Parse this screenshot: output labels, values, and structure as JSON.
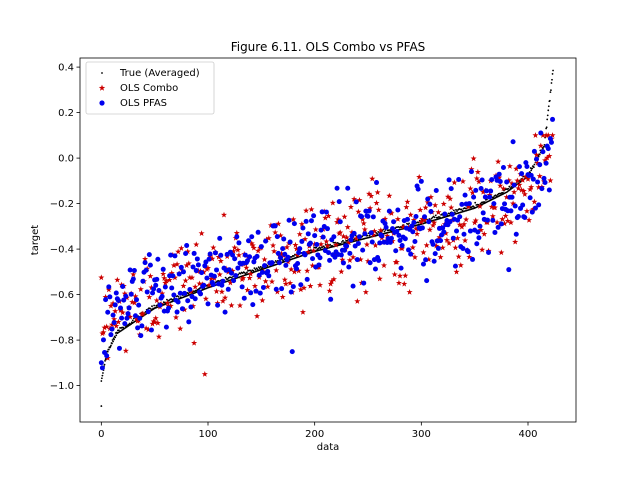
{
  "chart_data": {
    "type": "scatter",
    "title": "Figure 6.11. OLS Combo vs PFAS",
    "xlabel": "data",
    "ylabel": "target",
    "xlim": [
      -20,
      445
    ],
    "ylim": [
      -1.16,
      0.44
    ],
    "xticks": [
      0,
      100,
      200,
      300,
      400
    ],
    "yticks": [
      -1.0,
      -0.8,
      -0.6,
      -0.4,
      -0.2,
      0.0,
      0.2,
      0.4
    ],
    "xtick_labels": [
      "0",
      "100",
      "200",
      "300",
      "400"
    ],
    "ytick_labels": [
      "−1.0",
      "−0.8",
      "−0.6",
      "−0.4",
      "−0.2",
      "0.0",
      "0.2",
      "0.4"
    ],
    "legend_position": "upper-left",
    "n_points": 424,
    "series": [
      {
        "name": "True (Averaged)",
        "marker": "dot",
        "color": "#000000"
      },
      {
        "name": "OLS Combo",
        "marker": "star",
        "color": "#cc0000"
      },
      {
        "name": "OLS PFAS",
        "marker": "circle",
        "color": "#0000ee"
      }
    ],
    "true_curve_control_points": [
      [
        0,
        -0.98
      ],
      [
        5,
        -0.86
      ],
      [
        15,
        -0.77
      ],
      [
        50,
        -0.66
      ],
      [
        100,
        -0.57
      ],
      [
        150,
        -0.49
      ],
      [
        200,
        -0.41
      ],
      [
        250,
        -0.35
      ],
      [
        300,
        -0.29
      ],
      [
        350,
        -0.22
      ],
      [
        380,
        -0.15
      ],
      [
        400,
        -0.08
      ],
      [
        415,
        0.05
      ],
      [
        423,
        0.37
      ]
    ],
    "true_outliers": [
      [
        0,
        -1.09
      ]
    ],
    "scatter_spread": 0.12
  }
}
